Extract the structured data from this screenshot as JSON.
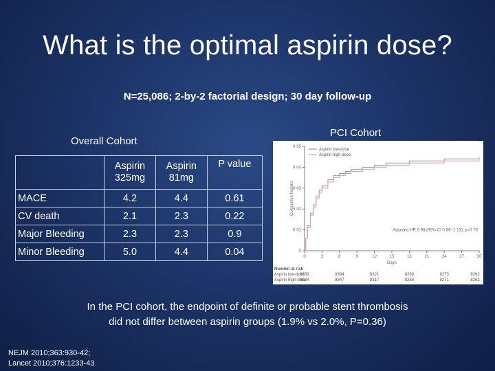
{
  "slide": {
    "title": "What is the optimal aspirin dose?",
    "subtitle": "N=25,086; 2-by-2 factorial design; 30 day follow-up",
    "overall_label": "Overall Cohort",
    "pci_label": "PCI Cohort",
    "conclusion_line1": "In the PCI cohort, the endpoint of definite or probable stent thrombosis",
    "conclusion_line2": "did not differ between aspirin groups (1.9% vs 2.0%, P=0.36)",
    "ref_line1": "NEJM 2010;363:930-42;",
    "ref_line2": "Lancet 2010;376:1233-43"
  },
  "table": {
    "headers": [
      "",
      "Aspirin 325mg",
      "Aspirin 81mg",
      "P value"
    ],
    "header_col1_line1": "Aspirin",
    "header_col1_line2": "325mg",
    "header_col2_line1": "Aspirin",
    "header_col2_line2": "81mg",
    "header_col3": "P value",
    "rows": [
      {
        "label": "MACE",
        "a325": "4.2",
        "a81": "4.4",
        "p": "0.61"
      },
      {
        "label": "CV death",
        "a325": "2.1",
        "a81": "2.3",
        "p": "0.22"
      },
      {
        "label": "Major Bleeding",
        "a325": "2.3",
        "a81": "2.3",
        "p": "0.9"
      },
      {
        "label": "Minor Bleeding",
        "a325": "5.0",
        "a81": "4.4",
        "p": "0.04"
      }
    ]
  },
  "chart_data": {
    "type": "line",
    "title": "",
    "xlabel": "Days",
    "ylabel": "Cumulative hazard",
    "xlim": [
      0,
      30
    ],
    "ylim": [
      0,
      0.05
    ],
    "x_ticks": [
      "0",
      "3",
      "6",
      "9",
      "12",
      "15",
      "18",
      "21",
      "24",
      "27",
      "30"
    ],
    "y_ticks": [
      "0",
      "0·01",
      "0·02",
      "0·03",
      "0·04",
      "0·05"
    ],
    "legend_position": "top-left",
    "annotation": "Adjusted HR 0·98 (95% CI 0·86–1·13); p=0·76",
    "series": [
      {
        "name": "Aspirin low-dose",
        "color": "#8f8fc9",
        "x": [
          0,
          0.2,
          0.5,
          1,
          1.5,
          2,
          2.5,
          3,
          4,
          5,
          6,
          7,
          8,
          10,
          12,
          14,
          16,
          18,
          21,
          24,
          27,
          30
        ],
        "y": [
          0,
          0.006,
          0.012,
          0.018,
          0.022,
          0.026,
          0.029,
          0.031,
          0.034,
          0.036,
          0.037,
          0.038,
          0.039,
          0.04,
          0.041,
          0.042,
          0.042,
          0.043,
          0.043,
          0.044,
          0.044,
          0.045
        ]
      },
      {
        "name": "Aspirin high-dose",
        "color": "#e59a9a",
        "x": [
          0,
          0.2,
          0.5,
          1,
          1.5,
          2,
          2.5,
          3,
          4,
          5,
          6,
          7,
          8,
          10,
          12,
          14,
          16,
          18,
          21,
          24,
          27,
          30
        ],
        "y": [
          0,
          0.006,
          0.011,
          0.017,
          0.021,
          0.025,
          0.028,
          0.03,
          0.033,
          0.035,
          0.036,
          0.037,
          0.038,
          0.039,
          0.04,
          0.041,
          0.041,
          0.042,
          0.042,
          0.043,
          0.043,
          0.044
        ]
      }
    ],
    "at_risk": {
      "title": "Number at risk",
      "rows": [
        {
          "label": "Aspirin low-dose",
          "values": [
            "8639",
            "8394",
            "8321",
            "8290",
            "8273",
            "8263"
          ]
        },
        {
          "label": "Aspirin high-dose",
          "values": [
            "8624",
            "8347",
            "8317",
            "8288",
            "8271",
            "8262"
          ]
        }
      ]
    }
  }
}
